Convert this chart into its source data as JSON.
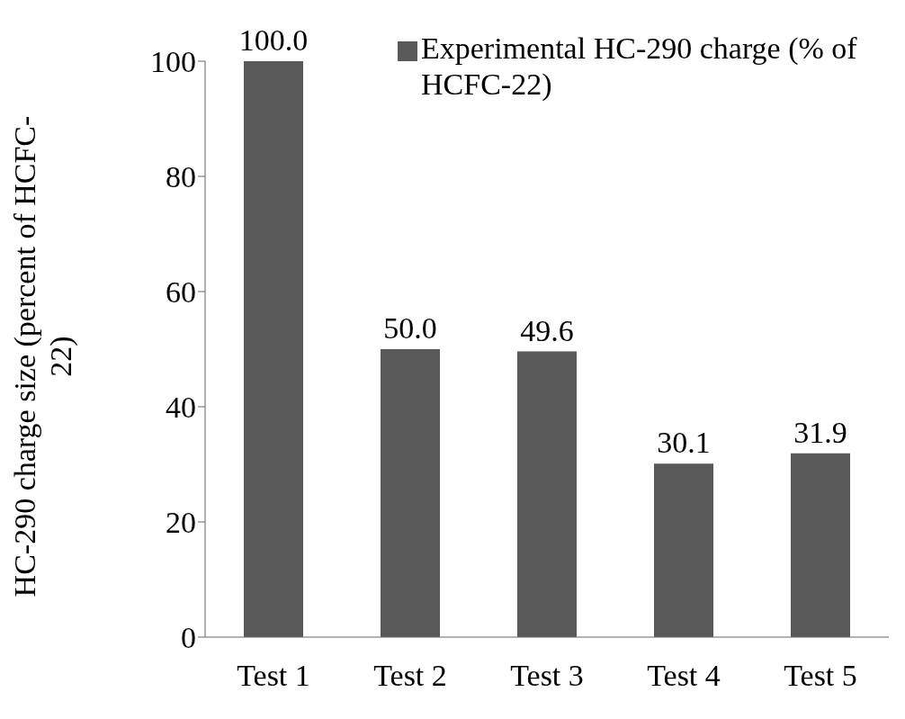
{
  "chart_data": {
    "type": "bar",
    "ylabel": "HC-290 charge size (percent of HCFC-22)",
    "categories": [
      "Test 1",
      "Test 2",
      "Test 3",
      "Test 4",
      "Test 5"
    ],
    "series": [
      {
        "name": "Experimental HC-290 charge (% of HCFC-22)",
        "color": "#595959",
        "values": [
          100.0,
          50.0,
          49.6,
          30.1,
          31.9
        ],
        "value_labels": [
          "100.0",
          "50.0",
          "49.6",
          "30.1",
          "31.9"
        ]
      }
    ],
    "ylim": [
      0,
      100
    ],
    "yticks": [
      0,
      20,
      40,
      60,
      80,
      100
    ],
    "grid": false,
    "legend": "top right"
  }
}
